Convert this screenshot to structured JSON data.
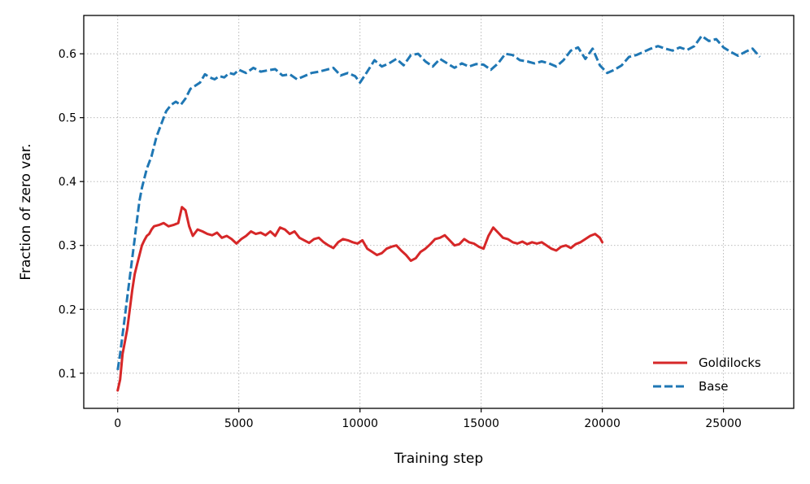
{
  "chart_data": {
    "type": "line",
    "title": "",
    "xlabel": "Training step",
    "ylabel": "Fraction of zero var.",
    "xlim": [
      -1400,
      27900
    ],
    "ylim": [
      0.045,
      0.66
    ],
    "xticks": [
      0,
      5000,
      10000,
      15000,
      20000,
      25000
    ],
    "xtick_labels": [
      "0",
      "5000",
      "10000",
      "15000",
      "20000",
      "25000"
    ],
    "yticks": [
      0.1,
      0.2,
      0.3,
      0.4,
      0.5,
      0.6
    ],
    "ytick_labels": [
      "0.1",
      "0.2",
      "0.3",
      "0.4",
      "0.5",
      "0.6"
    ],
    "grid": true,
    "legend_position": "lower-right",
    "series": [
      {
        "name": "Goldilocks",
        "color": "#d62728",
        "style": "solid",
        "x": [
          0,
          100,
          200,
          300,
          400,
          500,
          600,
          700,
          800,
          900,
          1000,
          1100,
          1200,
          1300,
          1400,
          1500,
          1700,
          1900,
          2100,
          2300,
          2500,
          2650,
          2800,
          2950,
          3100,
          3300,
          3500,
          3700,
          3900,
          4100,
          4300,
          4500,
          4700,
          4900,
          5100,
          5300,
          5500,
          5700,
          5900,
          6100,
          6300,
          6500,
          6700,
          6900,
          7100,
          7300,
          7500,
          7700,
          7900,
          8100,
          8300,
          8500,
          8700,
          8900,
          9100,
          9300,
          9500,
          9700,
          9900,
          10100,
          10300,
          10500,
          10700,
          10900,
          11100,
          11300,
          11500,
          11700,
          11900,
          12100,
          12300,
          12500,
          12700,
          12900,
          13100,
          13300,
          13500,
          13700,
          13900,
          14100,
          14300,
          14500,
          14700,
          14900,
          15100,
          15300,
          15500,
          15700,
          15900,
          16100,
          16300,
          16500,
          16700,
          16900,
          17100,
          17300,
          17500,
          17700,
          17900,
          18100,
          18300,
          18500,
          18700,
          18900,
          19100,
          19300,
          19500,
          19700,
          19900,
          20000
        ],
        "y": [
          0.073,
          0.09,
          0.13,
          0.15,
          0.17,
          0.2,
          0.23,
          0.255,
          0.27,
          0.285,
          0.3,
          0.308,
          0.315,
          0.318,
          0.325,
          0.33,
          0.332,
          0.335,
          0.33,
          0.332,
          0.335,
          0.36,
          0.355,
          0.33,
          0.315,
          0.325,
          0.322,
          0.318,
          0.316,
          0.32,
          0.312,
          0.315,
          0.31,
          0.303,
          0.31,
          0.315,
          0.322,
          0.318,
          0.32,
          0.316,
          0.322,
          0.315,
          0.328,
          0.325,
          0.318,
          0.322,
          0.312,
          0.308,
          0.304,
          0.31,
          0.312,
          0.305,
          0.3,
          0.296,
          0.305,
          0.31,
          0.308,
          0.305,
          0.303,
          0.308,
          0.295,
          0.29,
          0.285,
          0.288,
          0.295,
          0.298,
          0.3,
          0.292,
          0.285,
          0.276,
          0.28,
          0.29,
          0.295,
          0.302,
          0.31,
          0.312,
          0.316,
          0.308,
          0.3,
          0.302,
          0.31,
          0.305,
          0.303,
          0.298,
          0.295,
          0.315,
          0.328,
          0.32,
          0.312,
          0.31,
          0.305,
          0.303,
          0.306,
          0.302,
          0.305,
          0.303,
          0.305,
          0.3,
          0.295,
          0.292,
          0.298,
          0.3,
          0.296,
          0.302,
          0.305,
          0.31,
          0.315,
          0.318,
          0.312,
          0.305
        ]
      },
      {
        "name": "Base",
        "color": "#1f77b4",
        "style": "dashed",
        "x": [
          0,
          100,
          200,
          300,
          400,
          500,
          600,
          700,
          800,
          900,
          1000,
          1200,
          1400,
          1600,
          1800,
          2000,
          2200,
          2400,
          2600,
          2800,
          3000,
          3200,
          3400,
          3600,
          3800,
          4000,
          4200,
          4400,
          4600,
          4800,
          5000,
          5300,
          5600,
          5900,
          6200,
          6500,
          6800,
          7100,
          7400,
          7700,
          8000,
          8300,
          8600,
          8900,
          9200,
          9500,
          9800,
          10000,
          10300,
          10600,
          10900,
          11200,
          11500,
          11800,
          12100,
          12400,
          12700,
          13000,
          13300,
          13600,
          13900,
          14200,
          14500,
          14800,
          15100,
          15400,
          15700,
          16000,
          16300,
          16600,
          16900,
          17200,
          17500,
          17800,
          18100,
          18400,
          18700,
          19000,
          19300,
          19600,
          19900,
          20200,
          20500,
          20800,
          21100,
          21400,
          21700,
          22000,
          22300,
          22600,
          22900,
          23200,
          23500,
          23800,
          24100,
          24400,
          24700,
          25000,
          25300,
          25600,
          25900,
          26200,
          26500
        ],
        "y": [
          0.105,
          0.13,
          0.16,
          0.19,
          0.22,
          0.25,
          0.28,
          0.31,
          0.34,
          0.37,
          0.39,
          0.42,
          0.44,
          0.47,
          0.49,
          0.51,
          0.52,
          0.525,
          0.52,
          0.53,
          0.545,
          0.55,
          0.555,
          0.568,
          0.563,
          0.56,
          0.565,
          0.563,
          0.57,
          0.568,
          0.575,
          0.57,
          0.578,
          0.572,
          0.574,
          0.576,
          0.566,
          0.568,
          0.56,
          0.565,
          0.57,
          0.572,
          0.575,
          0.578,
          0.566,
          0.57,
          0.565,
          0.555,
          0.572,
          0.59,
          0.58,
          0.585,
          0.592,
          0.582,
          0.598,
          0.6,
          0.588,
          0.58,
          0.592,
          0.585,
          0.578,
          0.585,
          0.58,
          0.584,
          0.583,
          0.575,
          0.585,
          0.6,
          0.598,
          0.59,
          0.588,
          0.585,
          0.588,
          0.585,
          0.58,
          0.59,
          0.605,
          0.61,
          0.592,
          0.608,
          0.582,
          0.57,
          0.575,
          0.582,
          0.595,
          0.598,
          0.603,
          0.608,
          0.612,
          0.608,
          0.605,
          0.61,
          0.606,
          0.612,
          0.628,
          0.62,
          0.623,
          0.61,
          0.603,
          0.597,
          0.603,
          0.608,
          0.595
        ]
      }
    ]
  }
}
